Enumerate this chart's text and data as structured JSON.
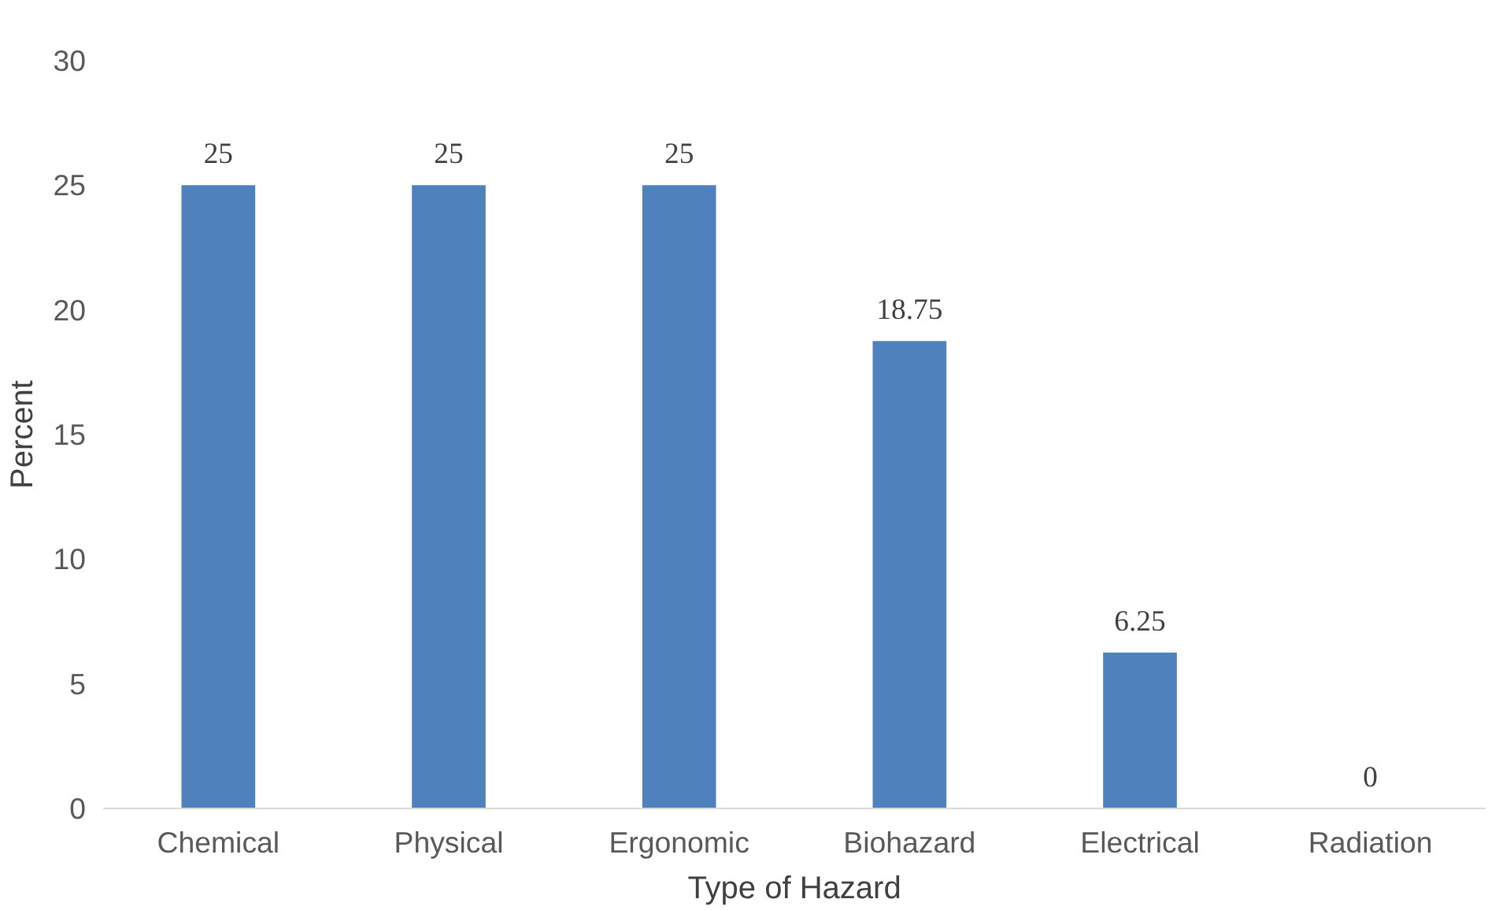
{
  "chart_data": {
    "type": "bar",
    "xlabel": "Type of Hazard",
    "ylabel": "Percent",
    "categories": [
      "Chemical",
      "Physical",
      "Ergonomic",
      "Biohazard",
      "Electrical",
      "Radiation"
    ],
    "values": [
      25,
      25,
      25,
      18.75,
      6.25,
      0
    ],
    "color": "#4f81bd",
    "ylim": [
      0,
      30
    ],
    "yticks": [
      0,
      5,
      10,
      15,
      20,
      25,
      30
    ],
    "grid": false,
    "data_labels": true
  }
}
